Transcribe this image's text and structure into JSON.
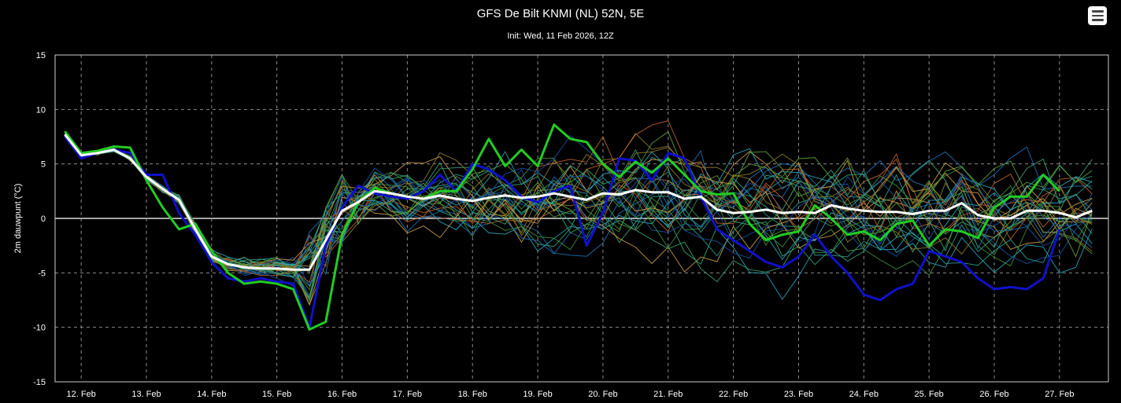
{
  "chart_data": {
    "type": "line",
    "title": "GFS De Bilt KNMI (NL) 52N, 5E",
    "subtitle": "Init: Wed, 11 Feb 2026, 12Z",
    "xlabel": "",
    "ylabel": "2m dauwpunt (°C)",
    "ylim": [
      -15,
      15
    ],
    "yticks": [
      15,
      10,
      5,
      0,
      -5,
      -10,
      -15
    ],
    "xlim": [
      11.6,
      27.75
    ],
    "xticks": [
      {
        "value": 12,
        "label": "12. Feb"
      },
      {
        "value": 13,
        "label": "13. Feb"
      },
      {
        "value": 14,
        "label": "14. Feb"
      },
      {
        "value": 15,
        "label": "15. Feb"
      },
      {
        "value": 16,
        "label": "16. Feb"
      },
      {
        "value": 17,
        "label": "17. Feb"
      },
      {
        "value": 18,
        "label": "18. Feb"
      },
      {
        "value": 19,
        "label": "19. Feb"
      },
      {
        "value": 20,
        "label": "20. Feb"
      },
      {
        "value": 21,
        "label": "21. Feb"
      },
      {
        "value": 22,
        "label": "22. Feb"
      },
      {
        "value": 23,
        "label": "23. Feb"
      },
      {
        "value": 24,
        "label": "24. Feb"
      },
      {
        "value": 25,
        "label": "25. Feb"
      },
      {
        "value": 26,
        "label": "26. Feb"
      },
      {
        "value": 27,
        "label": "27. Feb"
      }
    ],
    "grid": true,
    "legend": "none",
    "ensemble_colors": [
      "#1f6fb0",
      "#2a9d8f",
      "#3d8b3d",
      "#c59a4a",
      "#b8612f",
      "#2aa0b8",
      "#5b9c3a",
      "#8a7a2a",
      "#1a4fa0",
      "#3aa070"
    ],
    "series": [
      {
        "role": "mean",
        "color": "#ffffff",
        "width": 3,
        "points": [
          [
            11.75,
            7.7
          ],
          [
            12.0,
            5.8
          ],
          [
            12.25,
            6.0
          ],
          [
            12.5,
            6.3
          ],
          [
            12.75,
            5.5
          ],
          [
            13.0,
            3.8
          ],
          [
            13.25,
            2.7
          ],
          [
            13.5,
            1.7
          ],
          [
            13.75,
            -1.0
          ],
          [
            14.0,
            -3.5
          ],
          [
            14.25,
            -4.2
          ],
          [
            14.5,
            -4.5
          ],
          [
            14.75,
            -4.6
          ],
          [
            15.0,
            -4.6
          ],
          [
            15.25,
            -4.7
          ],
          [
            15.5,
            -4.7
          ],
          [
            15.75,
            -2.0
          ],
          [
            16.0,
            0.7
          ],
          [
            16.25,
            1.5
          ],
          [
            16.5,
            2.5
          ],
          [
            16.75,
            2.3
          ],
          [
            17.0,
            2.0
          ],
          [
            17.25,
            1.8
          ],
          [
            17.5,
            2.1
          ],
          [
            17.75,
            1.8
          ],
          [
            18.0,
            1.6
          ],
          [
            18.25,
            1.9
          ],
          [
            18.5,
            2.1
          ],
          [
            18.75,
            1.9
          ],
          [
            19.0,
            2.0
          ],
          [
            19.25,
            2.3
          ],
          [
            19.5,
            2.0
          ],
          [
            19.75,
            1.7
          ],
          [
            20.0,
            2.3
          ],
          [
            20.25,
            2.2
          ],
          [
            20.5,
            2.6
          ],
          [
            20.75,
            2.4
          ],
          [
            21.0,
            2.4
          ],
          [
            21.25,
            1.8
          ],
          [
            21.5,
            2.0
          ],
          [
            21.75,
            0.8
          ],
          [
            22.0,
            0.5
          ],
          [
            22.25,
            0.6
          ],
          [
            22.5,
            0.8
          ],
          [
            22.75,
            0.5
          ],
          [
            23.0,
            0.6
          ],
          [
            23.25,
            0.5
          ],
          [
            23.5,
            1.2
          ],
          [
            23.75,
            0.9
          ],
          [
            24.0,
            0.7
          ],
          [
            24.25,
            0.6
          ],
          [
            24.5,
            0.6
          ],
          [
            24.75,
            0.4
          ],
          [
            25.0,
            0.7
          ],
          [
            25.25,
            0.7
          ],
          [
            25.5,
            1.4
          ],
          [
            25.75,
            0.3
          ],
          [
            26.0,
            0.0
          ],
          [
            26.25,
            0.0
          ],
          [
            26.5,
            0.7
          ],
          [
            26.75,
            0.7
          ],
          [
            27.0,
            0.5
          ],
          [
            27.25,
            0.1
          ],
          [
            27.5,
            0.7
          ]
        ]
      },
      {
        "role": "control",
        "color": "#22cc22",
        "width": 3,
        "points": [
          [
            11.75,
            8.0
          ],
          [
            12.0,
            6.0
          ],
          [
            12.25,
            6.2
          ],
          [
            12.5,
            6.6
          ],
          [
            12.75,
            6.5
          ],
          [
            13.0,
            3.5
          ],
          [
            13.25,
            1.0
          ],
          [
            13.5,
            -1.0
          ],
          [
            13.75,
            -0.5
          ],
          [
            14.0,
            -3.0
          ],
          [
            14.25,
            -5.0
          ],
          [
            14.5,
            -6.0
          ],
          [
            14.75,
            -5.8
          ],
          [
            15.0,
            -6.0
          ],
          [
            15.25,
            -6.5
          ],
          [
            15.5,
            -10.2
          ],
          [
            15.75,
            -9.5
          ],
          [
            16.0,
            -1.5
          ],
          [
            16.25,
            1.5
          ],
          [
            16.5,
            2.8
          ],
          [
            16.75,
            2.3
          ],
          [
            17.0,
            2.0
          ],
          [
            17.25,
            1.8
          ],
          [
            17.5,
            2.5
          ],
          [
            17.75,
            2.5
          ],
          [
            18.0,
            4.5
          ],
          [
            18.25,
            7.3
          ],
          [
            18.5,
            4.8
          ],
          [
            18.75,
            6.3
          ],
          [
            19.0,
            4.8
          ],
          [
            19.25,
            8.6
          ],
          [
            19.5,
            7.3
          ],
          [
            19.75,
            7.0
          ],
          [
            20.0,
            5.0
          ],
          [
            20.25,
            3.8
          ],
          [
            20.5,
            5.2
          ],
          [
            20.75,
            4.2
          ],
          [
            21.0,
            5.5
          ],
          [
            21.25,
            4.0
          ],
          [
            21.5,
            2.5
          ],
          [
            21.75,
            2.2
          ],
          [
            22.0,
            2.3
          ],
          [
            22.25,
            -0.5
          ],
          [
            22.5,
            -2.0
          ],
          [
            22.75,
            -1.5
          ],
          [
            23.0,
            -1.2
          ],
          [
            23.25,
            1.2
          ],
          [
            23.5,
            0.0
          ],
          [
            23.75,
            -1.5
          ],
          [
            24.0,
            -1.2
          ],
          [
            24.25,
            -2.0
          ],
          [
            24.5,
            -0.5
          ],
          [
            24.75,
            -0.2
          ],
          [
            25.0,
            -2.5
          ],
          [
            25.25,
            -1.0
          ],
          [
            25.5,
            -1.2
          ],
          [
            25.75,
            -1.8
          ],
          [
            26.0,
            1.0
          ],
          [
            26.25,
            2.0
          ],
          [
            26.5,
            2.0
          ],
          [
            26.75,
            4.0
          ],
          [
            27.0,
            2.5
          ]
        ]
      },
      {
        "role": "operational",
        "color": "#1010cc",
        "width": 3,
        "points": [
          [
            11.75,
            7.5
          ],
          [
            12.0,
            5.5
          ],
          [
            12.25,
            6.0
          ],
          [
            12.5,
            6.3
          ],
          [
            12.75,
            6.0
          ],
          [
            13.0,
            4.0
          ],
          [
            13.25,
            4.0
          ],
          [
            13.5,
            0.5
          ],
          [
            13.75,
            -1.5
          ],
          [
            14.0,
            -4.0
          ],
          [
            14.25,
            -5.5
          ],
          [
            14.5,
            -5.8
          ],
          [
            14.75,
            -5.5
          ],
          [
            15.0,
            -5.8
          ],
          [
            15.25,
            -6.0
          ],
          [
            15.5,
            -10.0
          ],
          [
            15.75,
            -2.5
          ],
          [
            16.0,
            1.0
          ],
          [
            16.25,
            3.0
          ],
          [
            16.5,
            2.3
          ],
          [
            16.75,
            2.0
          ],
          [
            17.0,
            1.8
          ],
          [
            17.25,
            2.5
          ],
          [
            17.5,
            4.0
          ],
          [
            17.75,
            2.5
          ],
          [
            18.0,
            5.0
          ],
          [
            18.25,
            4.5
          ],
          [
            18.5,
            3.5
          ],
          [
            18.75,
            2.0
          ],
          [
            19.0,
            1.5
          ],
          [
            19.25,
            2.5
          ],
          [
            19.5,
            3.0
          ],
          [
            19.75,
            -2.5
          ],
          [
            20.0,
            0.5
          ],
          [
            20.25,
            5.5
          ],
          [
            20.5,
            5.3
          ],
          [
            20.75,
            3.5
          ],
          [
            21.0,
            6.0
          ],
          [
            21.25,
            5.5
          ],
          [
            21.5,
            2.0
          ],
          [
            21.75,
            -1.0
          ],
          [
            22.0,
            -2.0
          ],
          [
            22.25,
            -3.0
          ],
          [
            22.5,
            -4.0
          ],
          [
            22.75,
            -4.5
          ],
          [
            23.0,
            -3.5
          ],
          [
            23.25,
            -1.5
          ],
          [
            23.5,
            -3.5
          ],
          [
            23.75,
            -5.0
          ],
          [
            24.0,
            -7.0
          ],
          [
            24.25,
            -7.5
          ],
          [
            24.5,
            -6.5
          ],
          [
            24.75,
            -6.0
          ],
          [
            25.0,
            -3.0
          ],
          [
            25.25,
            -3.5
          ],
          [
            25.5,
            -4.0
          ],
          [
            25.75,
            -5.5
          ],
          [
            26.0,
            -6.5
          ],
          [
            26.25,
            -6.3
          ],
          [
            26.5,
            -6.5
          ],
          [
            26.75,
            -5.5
          ],
          [
            27.0,
            -1.0
          ]
        ]
      }
    ],
    "ensemble_hint": "30 thin ensemble member lines spanning roughly -12 to +9"
  }
}
